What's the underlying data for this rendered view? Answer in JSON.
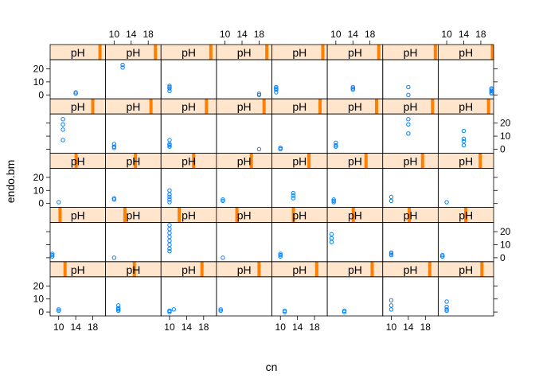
{
  "chart_data": {
    "type": "scatter",
    "layout": "lattice trellis, 8 columns x 5 rows, one panel per pH shingle level",
    "xlabel": "cn",
    "ylabel": "endo.bm",
    "strip_label": "pH",
    "xlim": [
      8,
      21
    ],
    "ylim": [
      -3,
      27
    ],
    "x_ticks": [
      10,
      14,
      18
    ],
    "y_ticks": [
      0,
      10,
      20
    ],
    "x_tick_labels": [
      "10",
      "14",
      "18"
    ],
    "y_tick_labels": [
      "0",
      "10",
      "20"
    ],
    "strip_range": [
      0,
      1
    ],
    "colors": {
      "point": "#0080ff",
      "strip_bg": "#ffe5cc",
      "strip_indicator": "#ff7f00",
      "frame": "#000000"
    },
    "panels": [
      {
        "row": 0,
        "col": 0,
        "strip": [
          0.24,
          0.27
        ],
        "points": [
          [
            10,
            1
          ],
          [
            10,
            2
          ]
        ]
      },
      {
        "row": 0,
        "col": 1,
        "strip": [
          0.49,
          0.52
        ],
        "points": [
          [
            11,
            1
          ],
          [
            11,
            2
          ],
          [
            11,
            3
          ],
          [
            11,
            5
          ]
        ]
      },
      {
        "row": 0,
        "col": 2,
        "strip": [
          0.71,
          0.75
        ],
        "points": [
          [
            10,
            0
          ],
          [
            10,
            1
          ],
          [
            10,
            1
          ],
          [
            11,
            2
          ]
        ]
      },
      {
        "row": 0,
        "col": 3,
        "strip": [
          0.74,
          0.78
        ],
        "points": [
          [
            9,
            1
          ],
          [
            9,
            2
          ]
        ]
      },
      {
        "row": 0,
        "col": 4,
        "strip": [
          0.78,
          0.82
        ],
        "points": [
          [
            11,
            0
          ],
          [
            11,
            1
          ]
        ]
      },
      {
        "row": 0,
        "col": 5,
        "strip": [
          0.78,
          0.82
        ],
        "points": [
          [
            12,
            0
          ],
          [
            12,
            1
          ]
        ]
      },
      {
        "row": 0,
        "col": 6,
        "strip": [
          0.82,
          0.86
        ],
        "points": [
          [
            10,
            2
          ],
          [
            10,
            5
          ],
          [
            10,
            9
          ]
        ]
      },
      {
        "row": 0,
        "col": 7,
        "strip": [
          0.76,
          0.8
        ],
        "points": [
          [
            10,
            1
          ],
          [
            10,
            2
          ],
          [
            10,
            4
          ],
          [
            10,
            8
          ]
        ]
      },
      {
        "row": 1,
        "col": 0,
        "strip": [
          0.15,
          0.18
        ],
        "points": [
          [
            8.5,
            1
          ],
          [
            8.5,
            2
          ],
          [
            8.5,
            3
          ]
        ]
      },
      {
        "row": 1,
        "col": 1,
        "strip": [
          0.32,
          0.35
        ],
        "points": [
          [
            10,
            0
          ]
        ]
      },
      {
        "row": 1,
        "col": 2,
        "strip": [
          0.3,
          0.33
        ],
        "points": [
          [
            10,
            5
          ],
          [
            10,
            7
          ],
          [
            10,
            10
          ],
          [
            10,
            13
          ],
          [
            10,
            16
          ],
          [
            10,
            19
          ],
          [
            10,
            22
          ],
          [
            10,
            25
          ]
        ]
      },
      {
        "row": 1,
        "col": 3,
        "strip": [
          0.34,
          0.37
        ],
        "points": [
          [
            9.5,
            0
          ]
        ]
      },
      {
        "row": 1,
        "col": 4,
        "strip": [
          0.36,
          0.39
        ],
        "points": [
          [
            10,
            1
          ],
          [
            10,
            2
          ],
          [
            10,
            3
          ]
        ]
      },
      {
        "row": 1,
        "col": 5,
        "strip": [
          0.44,
          0.47
        ],
        "points": [
          [
            9,
            12
          ],
          [
            9,
            15
          ],
          [
            9,
            18
          ]
        ]
      },
      {
        "row": 1,
        "col": 6,
        "strip": [
          0.45,
          0.48
        ],
        "points": [
          [
            10,
            2
          ],
          [
            10,
            3
          ],
          [
            10,
            4
          ]
        ]
      },
      {
        "row": 1,
        "col": 7,
        "strip": [
          0.47,
          0.5
        ],
        "points": [
          [
            9,
            1
          ],
          [
            9,
            1
          ],
          [
            9,
            2
          ]
        ]
      },
      {
        "row": 2,
        "col": 0,
        "strip": [
          0.44,
          0.48
        ],
        "points": [
          [
            10,
            1
          ]
        ]
      },
      {
        "row": 2,
        "col": 1,
        "strip": [
          0.51,
          0.55
        ],
        "points": [
          [
            10,
            3
          ],
          [
            10,
            4
          ]
        ]
      },
      {
        "row": 2,
        "col": 2,
        "strip": [
          0.56,
          0.6
        ],
        "points": [
          [
            10,
            1
          ],
          [
            10,
            3
          ],
          [
            10,
            5
          ],
          [
            10,
            7
          ],
          [
            10,
            10
          ]
        ]
      },
      {
        "row": 2,
        "col": 3,
        "strip": [
          0.6,
          0.64
        ],
        "points": [
          [
            9.5,
            2
          ],
          [
            9.5,
            3
          ]
        ]
      },
      {
        "row": 2,
        "col": 4,
        "strip": [
          0.64,
          0.68
        ],
        "points": [
          [
            13,
            4
          ],
          [
            13,
            6
          ],
          [
            13,
            8
          ]
        ]
      },
      {
        "row": 2,
        "col": 5,
        "strip": [
          0.67,
          0.71
        ],
        "points": [
          [
            9.5,
            1
          ],
          [
            9.5,
            2
          ],
          [
            9.5,
            3
          ]
        ]
      },
      {
        "row": 2,
        "col": 6,
        "strip": [
          0.69,
          0.73
        ],
        "points": [
          [
            10,
            2
          ],
          [
            10,
            5
          ]
        ]
      },
      {
        "row": 2,
        "col": 7,
        "strip": [
          0.73,
          0.77
        ],
        "points": [
          [
            10,
            1
          ]
        ]
      },
      {
        "row": 3,
        "col": 0,
        "strip": [
          0.74,
          0.77
        ],
        "points": [
          [
            11,
            7
          ],
          [
            11,
            15
          ],
          [
            11,
            19
          ],
          [
            11,
            23
          ]
        ]
      },
      {
        "row": 3,
        "col": 1,
        "strip": [
          0.79,
          0.82
        ],
        "points": [
          [
            10,
            1
          ],
          [
            10,
            2
          ],
          [
            10,
            4
          ]
        ]
      },
      {
        "row": 3,
        "col": 2,
        "strip": [
          0.79,
          0.82
        ],
        "points": [
          [
            10,
            2
          ],
          [
            10,
            3
          ],
          [
            10,
            4
          ],
          [
            10,
            7
          ]
        ]
      },
      {
        "row": 3,
        "col": 3,
        "strip": [
          0.83,
          0.86
        ],
        "points": [
          [
            18,
            0
          ]
        ]
      },
      {
        "row": 3,
        "col": 4,
        "strip": [
          0.84,
          0.87
        ],
        "points": [
          [
            10,
            0
          ],
          [
            10,
            1
          ],
          [
            10,
            1
          ]
        ]
      },
      {
        "row": 3,
        "col": 5,
        "strip": [
          0.86,
          0.89
        ],
        "points": [
          [
            10,
            2
          ],
          [
            10,
            3
          ],
          [
            10,
            5
          ]
        ]
      },
      {
        "row": 3,
        "col": 6,
        "strip": [
          0.87,
          0.9
        ],
        "points": [
          [
            14,
            12
          ],
          [
            14,
            19
          ],
          [
            14,
            23
          ]
        ]
      },
      {
        "row": 3,
        "col": 7,
        "strip": [
          0.88,
          0.91
        ],
        "points": [
          [
            14,
            3
          ],
          [
            14,
            6
          ],
          [
            14,
            8
          ],
          [
            14,
            14
          ]
        ]
      },
      {
        "row": 4,
        "col": 0,
        "strip": [
          0.87,
          0.9
        ],
        "points": [
          [
            14,
            1
          ],
          [
            14,
            2
          ]
        ]
      },
      {
        "row": 4,
        "col": 1,
        "strip": [
          0.87,
          0.9
        ],
        "points": [
          [
            12,
            21
          ],
          [
            12,
            23
          ]
        ]
      },
      {
        "row": 4,
        "col": 2,
        "strip": [
          0.87,
          0.9
        ],
        "points": [
          [
            10,
            3
          ],
          [
            10,
            5
          ],
          [
            10,
            6
          ],
          [
            10,
            7
          ]
        ]
      },
      {
        "row": 4,
        "col": 3,
        "strip": [
          0.88,
          0.91
        ],
        "points": [
          [
            18,
            0
          ],
          [
            18,
            1
          ]
        ]
      },
      {
        "row": 4,
        "col": 4,
        "strip": [
          0.89,
          0.92
        ],
        "points": [
          [
            9,
            2
          ],
          [
            9,
            4
          ],
          [
            9,
            5
          ],
          [
            9,
            6
          ]
        ]
      },
      {
        "row": 4,
        "col": 5,
        "strip": [
          0.9,
          0.93
        ],
        "points": [
          [
            14,
            4
          ],
          [
            14,
            5
          ],
          [
            14,
            6
          ]
        ]
      },
      {
        "row": 4,
        "col": 6,
        "strip": [
          0.92,
          0.95
        ],
        "points": [
          [
            14,
            0
          ],
          [
            14,
            6
          ]
        ]
      },
      {
        "row": 4,
        "col": 7,
        "strip": [
          0.95,
          0.98
        ],
        "points": [
          [
            20.5,
            1
          ],
          [
            20.5,
            2
          ],
          [
            20.5,
            3
          ],
          [
            20.5,
            4
          ],
          [
            20.5,
            5
          ]
        ]
      }
    ]
  }
}
